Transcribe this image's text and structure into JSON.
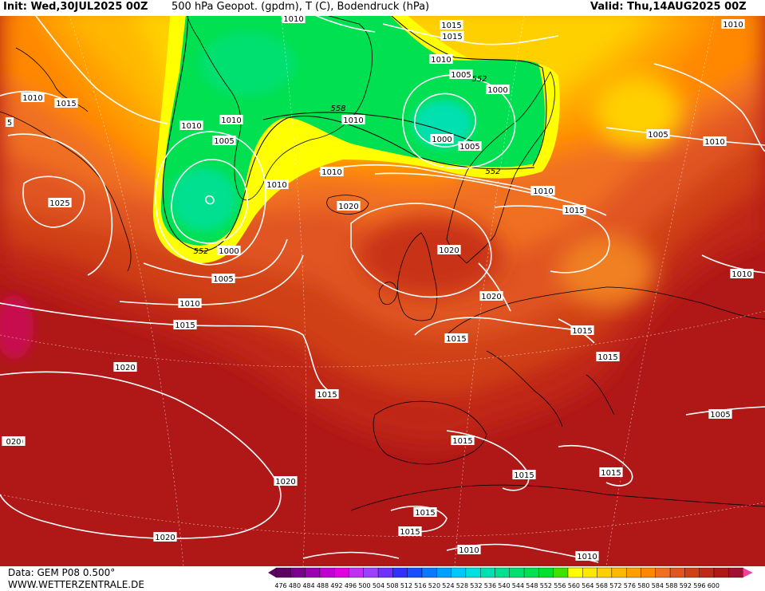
{
  "header": {
    "init_text": "Init: Wed,30JUL2025 00Z",
    "title_text": "500 hPa Geopot. (gpdm), T (C), Bodendruck (hPa)",
    "valid_text": "Valid: Thu,14AUG2025 00Z"
  },
  "footer": {
    "data_text": "Data: GEM P08 0.500°",
    "site_text": "WWW.WETTERZENTRALE.DE"
  },
  "color_scale": {
    "ticks": [
      "476",
      "480",
      "484",
      "488",
      "492",
      "496",
      "500",
      "504",
      "508",
      "512",
      "516",
      "520",
      "524",
      "528",
      "532",
      "536",
      "540",
      "544",
      "548",
      "552",
      "556",
      "560",
      "564",
      "568",
      "572",
      "576",
      "580",
      "584",
      "588",
      "592",
      "596",
      "600"
    ],
    "colors": [
      "#5a0060",
      "#7a0090",
      "#9a00b0",
      "#c000d0",
      "#e000e0",
      "#c030f0",
      "#9a40ff",
      "#7030ff",
      "#3030ff",
      "#1850ff",
      "#0a78ff",
      "#00a0ff",
      "#00c8ff",
      "#00e0e0",
      "#00e0b0",
      "#00e090",
      "#00e070",
      "#00e050",
      "#00e030",
      "#40e000",
      "#ffff00",
      "#ffe800",
      "#ffd000",
      "#ffb800",
      "#ffa000",
      "#ff8800",
      "#f07020",
      "#e05520",
      "#d04018",
      "#c02818",
      "#b01818",
      "#a01030",
      "#f040a0"
    ]
  },
  "isobar_labels": [
    {
      "text": "1010",
      "role": "isobar"
    },
    {
      "text": "1015",
      "role": "isobar"
    },
    {
      "text": "1010",
      "role": "isobar"
    },
    {
      "text": "1005",
      "role": "isobar"
    },
    {
      "text": "1000",
      "role": "isobar"
    },
    {
      "text": "1010",
      "role": "isobar"
    },
    {
      "text": "1020",
      "role": "isobar"
    },
    {
      "text": "1010",
      "role": "isobar"
    },
    {
      "text": "1010",
      "role": "isobar"
    },
    {
      "text": "1005",
      "role": "isobar"
    },
    {
      "text": "1005",
      "role": "isobar"
    },
    {
      "text": "1010",
      "role": "isobar"
    },
    {
      "text": "1010",
      "role": "isobar"
    },
    {
      "text": "1000",
      "role": "isobar"
    },
    {
      "text": "1005",
      "role": "isobar"
    },
    {
      "text": "1010",
      "role": "isobar"
    },
    {
      "text": "1025",
      "role": "isobar"
    },
    {
      "text": "1010",
      "role": "isobar"
    },
    {
      "text": "1015",
      "role": "isobar"
    },
    {
      "text": "1020",
      "role": "isobar"
    },
    {
      "text": "1010",
      "role": "isobar"
    },
    {
      "text": "1015",
      "role": "isobar"
    },
    {
      "text": "1000",
      "role": "isobar"
    },
    {
      "text": "1005",
      "role": "isobar"
    },
    {
      "text": "1020",
      "role": "isobar"
    },
    {
      "text": "1010",
      "role": "isobar"
    },
    {
      "text": "1015",
      "role": "isobar"
    },
    {
      "text": "1020",
      "role": "isobar"
    },
    {
      "text": "1015",
      "role": "isobar"
    },
    {
      "text": "1015",
      "role": "isobar"
    },
    {
      "text": "1010",
      "role": "isobar"
    },
    {
      "text": "1020",
      "role": "isobar"
    },
    {
      "text": "1015",
      "role": "isobar"
    },
    {
      "text": "1020",
      "role": "isobar"
    },
    {
      "text": "1010",
      "role": "isobar"
    },
    {
      "text": "1015",
      "role": "isobar"
    },
    {
      "text": "1015",
      "role": "isobar"
    },
    {
      "text": "1020",
      "role": "isobar"
    },
    {
      "text": "1015",
      "role": "isobar"
    },
    {
      "text": "1015",
      "role": "isobar"
    },
    {
      "text": "1015",
      "role": "isobar"
    },
    {
      "text": "1010",
      "role": "isobar"
    },
    {
      "text": "1015",
      "role": "isobar"
    },
    {
      "text": "1015",
      "role": "isobar"
    },
    {
      "text": "1010",
      "role": "isobar"
    },
    {
      "text": "1010",
      "role": "isobar"
    },
    {
      "text": "1005",
      "role": "isobar"
    },
    {
      "text": "5",
      "role": "isobar"
    },
    {
      "text": "020",
      "role": "isobar"
    }
  ],
  "gpdm_labels": [
    "552",
    "558",
    "552",
    "552"
  ]
}
